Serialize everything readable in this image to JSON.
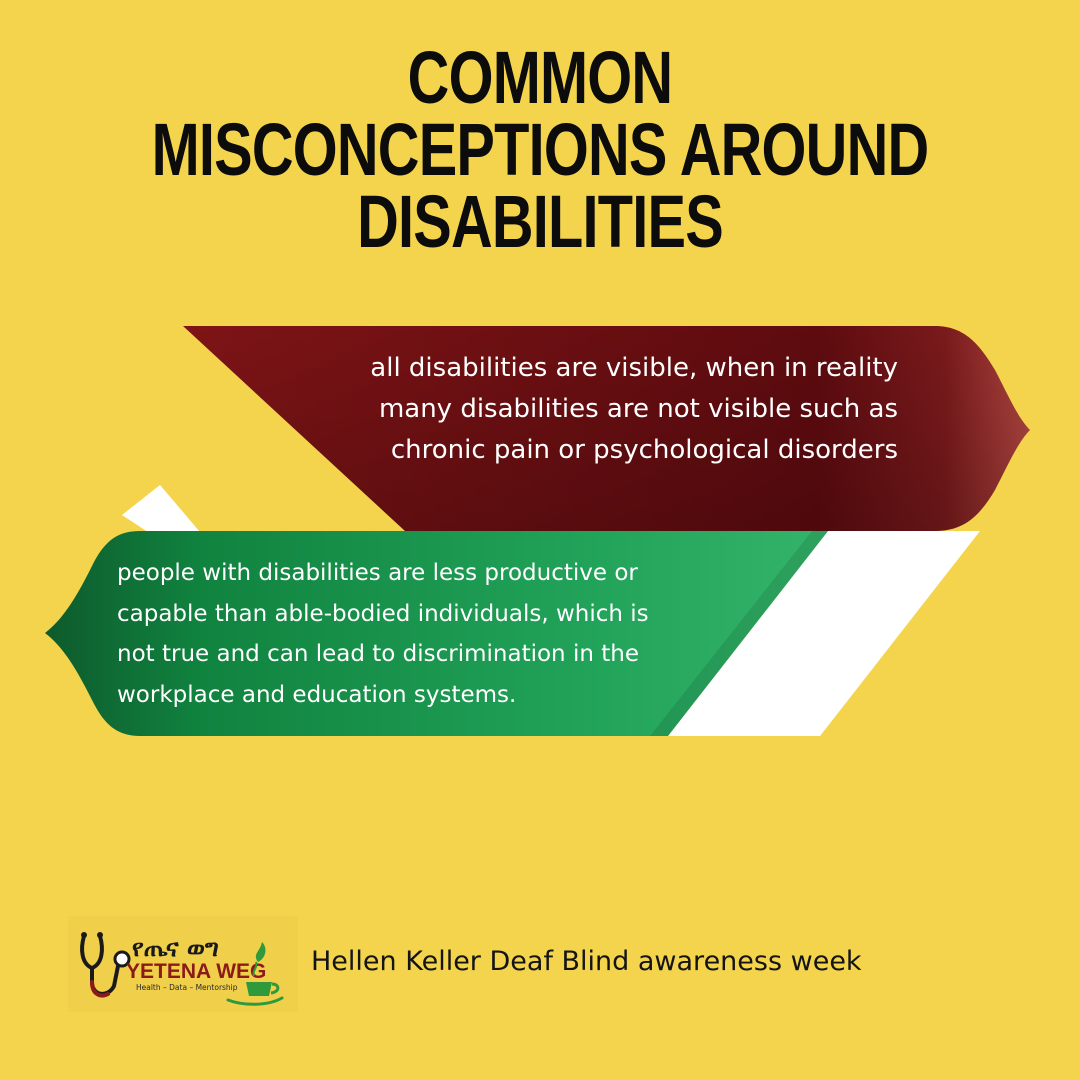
{
  "title": {
    "line1": "COMMON MISCONCEPTIONS AROUND",
    "line2": "DISABILITIES"
  },
  "misconception_red": {
    "lines": [
      "all disabilities are visible, when in reality",
      "many disabilities are not visible such as",
      "chronic pain or psychological disorders"
    ]
  },
  "misconception_green": {
    "lines": [
      "people with disabilities are less productive or",
      "capable than able-bodied individuals, which is",
      "not true and can lead to discrimination in the",
      "workplace and education systems."
    ]
  },
  "logo": {
    "amharic": "የጤና ወግ",
    "name": "YETENA WEG",
    "tagline": "Health – Data – Mentorship",
    "icons": [
      "stethoscope-icon",
      "coffee-cup-icon"
    ]
  },
  "footer": {
    "text": "Hellen Keller Deaf Blind awareness week"
  },
  "colors": {
    "background": "#f4d44d",
    "red_ribbon": "#6b0f12",
    "green_ribbon": "#1e9a55",
    "white_fold": "#ffffff",
    "title": "#0c0c0c"
  }
}
